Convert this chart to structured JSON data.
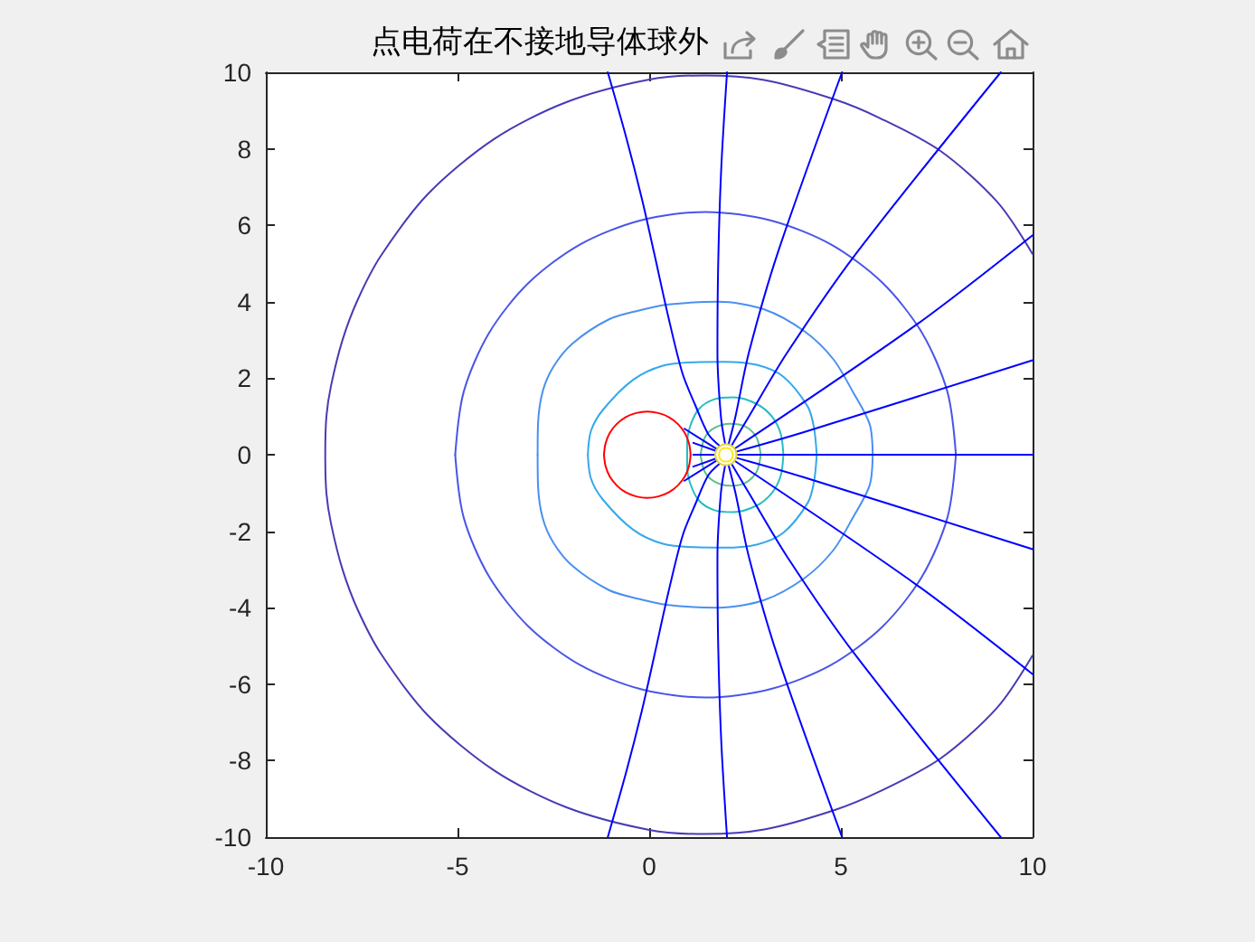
{
  "chart_data": {
    "type": "line",
    "title": "点电荷在不接地导体球外",
    "xlim": [
      -10,
      10
    ],
    "xticks": [
      -10,
      -5,
      0,
      5,
      10
    ],
    "ylim": [
      -10,
      10
    ],
    "yticks": [
      -10,
      -8,
      -6,
      -4,
      -2,
      0,
      2,
      4,
      6,
      8,
      10
    ],
    "marker": "none",
    "line_style": "solid",
    "series": [
      {
        "color": "#473bb5",
        "x": [
          10,
          9.08,
          7.59,
          6,
          4.84,
          3,
          1.45,
          0,
          -2.16,
          -4.04,
          -5.77,
          -7,
          -7.6,
          -8,
          -8.3,
          -8.42,
          -8.45,
          -8.42,
          -8.3,
          -8,
          -7.6,
          -7,
          -5.77,
          -4.04,
          -2.16,
          0,
          1.45,
          3,
          4.84,
          6,
          7.59,
          9.08,
          10
        ],
        "values": [
          5.25,
          6.61,
          7.95,
          8.81,
          9.29,
          9.8,
          9.92,
          9.81,
          9.22,
          8.26,
          6.82,
          5.2,
          4.06,
          3.0,
          1.8,
          1.0,
          0,
          -1.0,
          -1.8,
          -3.0,
          -4.06,
          -5.2,
          -6.82,
          -8.26,
          -9.22,
          -9.81,
          -9.92,
          -9.8,
          -9.29,
          -8.81,
          -7.95,
          -6.61,
          -5.25
        ]
      },
      {
        "color": "#4a55e8",
        "x": [
          8.0,
          7.78,
          7.12,
          6.09,
          4.74,
          3.16,
          1.47,
          -0.22,
          -1.8,
          -3.15,
          -4.18,
          -4.84,
          -5.06
        ],
        "values": [
          0,
          1.64,
          3.18,
          4.49,
          5.5,
          6.13,
          6.35,
          6.13,
          5.5,
          4.49,
          3.18,
          1.64,
          0
        ]
      },
      {
        "color": "#4a55e8",
        "x": [
          8.0,
          7.78,
          7.12,
          6.09,
          4.74,
          3.16,
          1.47,
          -0.22,
          -1.8,
          -3.15,
          -4.18,
          -4.84,
          -5.06
        ],
        "values": [
          0,
          -1.64,
          -3.18,
          -4.49,
          -5.5,
          -6.13,
          -6.35,
          -6.13,
          -5.5,
          -4.49,
          -3.18,
          -1.64,
          0
        ]
      },
      {
        "color": "#4a90f0",
        "x": [
          5.83,
          5.75,
          5.31,
          4.8,
          4.06,
          3,
          1.8,
          0.5,
          -0.27,
          -1.05,
          -2,
          -2.5,
          -2.78,
          -2.9,
          -2.91
        ],
        "values": [
          0,
          0.8,
          1.65,
          2.5,
          3.22,
          3.8,
          4.0,
          3.93,
          3.77,
          3.54,
          2.91,
          2.3,
          1.65,
          0.8,
          0
        ]
      },
      {
        "color": "#4a90f0",
        "x": [
          5.83,
          5.75,
          5.31,
          4.8,
          4.06,
          3,
          1.8,
          0.5,
          -0.27,
          -1.05,
          -2,
          -2.5,
          -2.78,
          -2.9,
          -2.91
        ],
        "values": [
          0,
          -0.8,
          -1.65,
          -2.5,
          -3.22,
          -3.8,
          -4.0,
          -3.93,
          -3.77,
          -3.54,
          -2.91,
          -2.3,
          -1.65,
          -0.8,
          0
        ]
      },
      {
        "color": "#35a8ec",
        "x": [
          4.37,
          4.3,
          4.14,
          3.5,
          2.8,
          1.93,
          1.2,
          0.36,
          -0.42,
          -1.21,
          -1.52,
          -1.6
        ],
        "values": [
          0,
          0.7,
          1.25,
          2.04,
          2.35,
          2.43,
          2.42,
          2.33,
          1.96,
          1.17,
          0.62,
          0
        ]
      },
      {
        "color": "#35a8ec",
        "x": [
          4.37,
          4.3,
          4.14,
          3.5,
          2.8,
          1.93,
          1.2,
          0.36,
          -0.42,
          -1.21,
          -1.52,
          -1.6
        ],
        "values": [
          0,
          -0.7,
          -1.25,
          -2.04,
          -2.35,
          -2.43,
          -2.42,
          -2.33,
          -1.96,
          -1.17,
          -0.62,
          0
        ]
      },
      {
        "color": "#25bdc5",
        "x": [
          3.5,
          3.43,
          3.2,
          2.8,
          2.2,
          1.7,
          1.3,
          1.07,
          0.99,
          0.99
        ],
        "values": [
          0,
          0.55,
          1,
          1.33,
          1.5,
          1.45,
          1.2,
          0.75,
          0.3,
          0
        ]
      },
      {
        "color": "#25bdc5",
        "x": [
          3.5,
          3.43,
          3.2,
          2.8,
          2.2,
          1.7,
          1.3,
          1.07,
          0.99,
          0.99
        ],
        "values": [
          0,
          -0.55,
          -1,
          -1.33,
          -1.5,
          -1.45,
          -1.2,
          -0.75,
          -0.3,
          0
        ]
      },
      {
        "color": "#5cc08a",
        "x": [
          2.91,
          2.8,
          2.5,
          2.1,
          1.7,
          1.45,
          1.34
        ],
        "values": [
          0,
          0.45,
          0.74,
          0.81,
          0.7,
          0.45,
          0
        ]
      },
      {
        "color": "#5cc08a",
        "x": [
          2.91,
          2.8,
          2.5,
          2.1,
          1.7,
          1.45,
          1.34
        ],
        "values": [
          0,
          -0.45,
          -0.74,
          -0.81,
          -0.7,
          -0.45,
          0
        ]
      },
      {
        "color": "#0000ff",
        "x": [
          2.28,
          10
        ],
        "values": [
          0,
          0
        ]
      },
      {
        "color": "#0000ff",
        "x": [
          2.27,
          4,
          10
        ],
        "values": [
          0.08,
          0.58,
          2.47
        ]
      },
      {
        "color": "#0000ff",
        "x": [
          2.27,
          4,
          10
        ],
        "values": [
          -0.08,
          -0.58,
          -2.47
        ]
      },
      {
        "color": "#0000ff",
        "x": [
          2.23,
          6.97,
          10
        ],
        "values": [
          0.16,
          3.4,
          5.74
        ]
      },
      {
        "color": "#0000ff",
        "x": [
          2.23,
          6.97,
          10
        ],
        "values": [
          -0.16,
          -3.4,
          -5.74
        ]
      },
      {
        "color": "#0000ff",
        "x": [
          2.15,
          2.6,
          3.6,
          5.35,
          9.17
        ],
        "values": [
          0.24,
          1,
          2.67,
          5.2,
          10
        ]
      },
      {
        "color": "#0000ff",
        "x": [
          2.15,
          2.6,
          3.6,
          5.35,
          9.17
        ],
        "values": [
          -0.24,
          -1,
          -2.67,
          -5.2,
          -10
        ]
      },
      {
        "color": "#0000ff",
        "x": [
          2.07,
          2.25,
          2.6,
          3.35,
          5.03
        ],
        "values": [
          0.27,
          1,
          2.67,
          5.27,
          10
        ]
      },
      {
        "color": "#0000ff",
        "x": [
          2.07,
          2.25,
          2.6,
          3.35,
          5.03
        ],
        "values": [
          -0.27,
          -1,
          -2.67,
          -5.27,
          -10
        ]
      },
      {
        "color": "#0000ff",
        "x": [
          1.98,
          1.87,
          1.78,
          1.8,
          1.88,
          2.03
        ],
        "values": [
          0.28,
          1,
          2.67,
          5,
          7.5,
          10
        ]
      },
      {
        "color": "#0000ff",
        "x": [
          1.98,
          1.87,
          1.78,
          1.8,
          1.88,
          2.03
        ],
        "values": [
          -0.28,
          -1,
          -2.67,
          -5,
          -7.5,
          -10
        ]
      },
      {
        "color": "#0000ff",
        "x": [
          1.84,
          1.54,
          1.2,
          0.87,
          0.5,
          0.13,
          -0.19,
          -0.6,
          -1.08
        ],
        "values": [
          0.23,
          0.54,
          1.3,
          2.12,
          3.6,
          5.27,
          6.69,
          8.3,
          10
        ]
      },
      {
        "color": "#0000ff",
        "x": [
          1.84,
          1.54,
          1.2,
          0.87,
          0.5,
          0.13,
          -0.19,
          -0.6,
          -1.08
        ],
        "values": [
          -0.23,
          -0.54,
          -1.3,
          -2.12,
          -3.6,
          -5.27,
          -6.69,
          -8.3,
          -10
        ]
      },
      {
        "color": "#0000ff",
        "x": [
          1.72,
          1.15
        ],
        "values": [
          0,
          0
        ]
      },
      {
        "color": "#0000ff",
        "x": [
          1.74,
          1.15
        ],
        "values": [
          0.1,
          0.31
        ]
      },
      {
        "color": "#0000ff",
        "x": [
          1.74,
          1.15
        ],
        "values": [
          -0.1,
          -0.31
        ]
      },
      {
        "color": "#0000ff",
        "x": [
          1.76,
          0.92
        ],
        "values": [
          0.15,
          0.68
        ]
      },
      {
        "color": "#0000ff",
        "x": [
          1.76,
          0.92
        ],
        "values": [
          -0.15,
          -0.68
        ]
      },
      {
        "color": "#ff0000",
        "x": [
          1.08,
          1.04,
          0.93,
          0.75,
          0.52,
          0.24,
          -0.05,
          -0.34,
          -0.62,
          -0.85,
          -1.03,
          -1.14,
          -1.18
        ],
        "values": [
          0,
          0.29,
          0.57,
          0.8,
          0.98,
          1.09,
          1.13,
          1.09,
          0.98,
          0.8,
          0.57,
          0.29,
          0
        ]
      },
      {
        "color": "#ff0000",
        "x": [
          1.08,
          1.04,
          0.93,
          0.75,
          0.52,
          0.24,
          -0.05,
          -0.34,
          -0.62,
          -0.85,
          -1.03,
          -1.14,
          -1.18
        ],
        "values": [
          0,
          -0.29,
          -0.57,
          -0.8,
          -0.98,
          -1.09,
          -1.13,
          -1.09,
          -0.98,
          -0.8,
          -0.57,
          -0.29,
          0
        ]
      },
      {
        "color": "#e6d435",
        "x": [
          2.28,
          2.24,
          2.14,
          2,
          1.86,
          1.76,
          1.72
        ],
        "values": [
          0,
          0.14,
          0.24,
          0.28,
          0.24,
          0.14,
          0
        ]
      },
      {
        "color": "#e6d435",
        "x": [
          2.28,
          2.24,
          2.14,
          2,
          1.86,
          1.76,
          1.72
        ],
        "values": [
          0,
          -0.14,
          -0.24,
          -0.28,
          -0.24,
          -0.14,
          0
        ]
      },
      {
        "color": "#fae81a",
        "x": [
          2.18,
          2.16,
          2.09,
          2,
          1.91,
          1.84,
          1.82
        ],
        "values": [
          0,
          0.09,
          0.16,
          0.18,
          0.16,
          0.09,
          0
        ]
      },
      {
        "color": "#fae81a",
        "x": [
          2.18,
          2.16,
          2.09,
          2,
          1.91,
          1.84,
          1.82
        ],
        "values": [
          0,
          -0.09,
          -0.16,
          -0.18,
          -0.16,
          -0.09,
          0
        ]
      }
    ]
  }
}
